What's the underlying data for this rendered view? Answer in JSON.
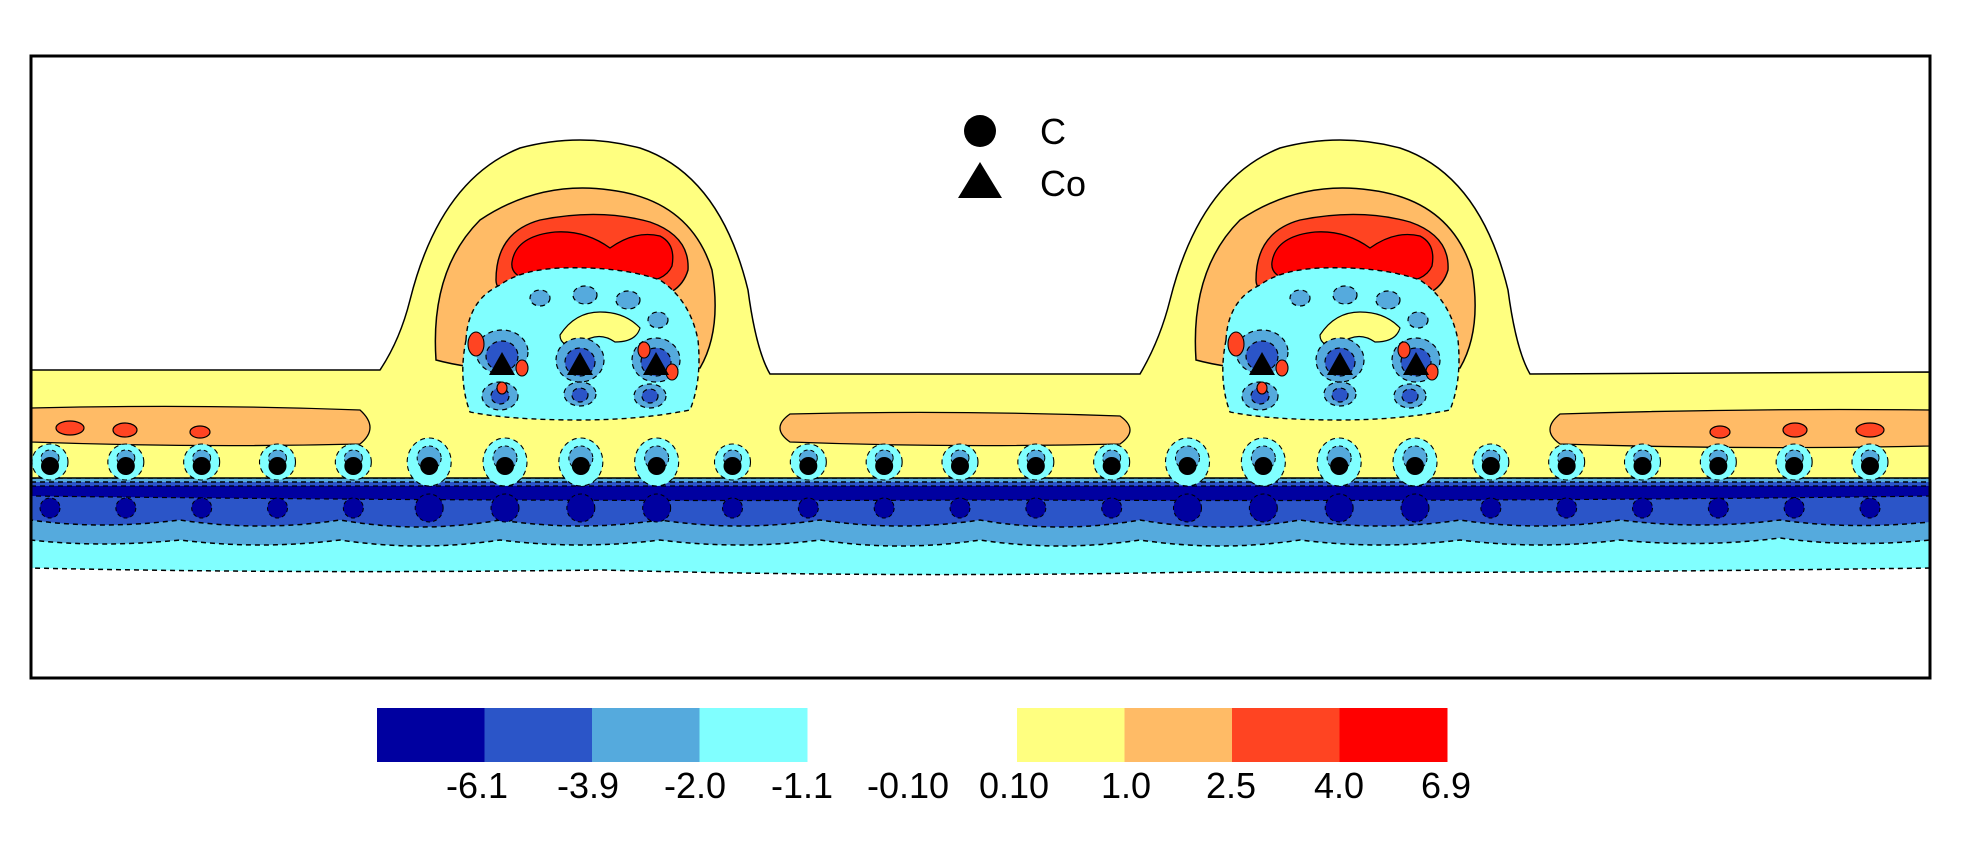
{
  "chart_data": {
    "type": "heatmap",
    "title": "",
    "xlabel": "",
    "ylabel": "",
    "grid": false,
    "legend": {
      "placement": "top-center",
      "entries": [
        {
          "marker": "circle",
          "label": "C"
        },
        {
          "marker": "triangle",
          "label": "Co"
        }
      ]
    },
    "colorbar": {
      "placement": "bottom-center",
      "negative_bins": [
        {
          "color": "#0000a0"
        },
        {
          "color": "#2b55c8"
        },
        {
          "color": "#55aadd"
        },
        {
          "color": "#80ffff"
        }
      ],
      "positive_bins": [
        {
          "color": "#ffff80"
        },
        {
          "color": "#ffbb66"
        },
        {
          "color": "#ff4422"
        },
        {
          "color": "#ff0000"
        }
      ],
      "tick_labels": [
        "-6.1",
        "-3.9",
        "-2.0",
        "-1.1",
        "-0.10",
        "0.10",
        "1.0",
        "2.5",
        "4.0",
        "6.9"
      ],
      "tick_values": [
        -6.1,
        -3.9,
        -2.0,
        -1.1,
        -0.1,
        0.1,
        1.0,
        2.5,
        4.0,
        6.9
      ]
    },
    "structure": {
      "carbon_atom_count": 25,
      "cobalt_cluster_count": 2,
      "cobalt_atoms_per_cluster": 3
    }
  },
  "colors": {
    "c8": "#ff0000",
    "c7": "#ff4422",
    "c6": "#ffbb66",
    "c5": "#ffff80",
    "c4": "#80ffff",
    "c3": "#55aadd",
    "c2": "#2b55c8",
    "c1": "#0000a0",
    "line": "#000000",
    "background": "#ffffff"
  }
}
